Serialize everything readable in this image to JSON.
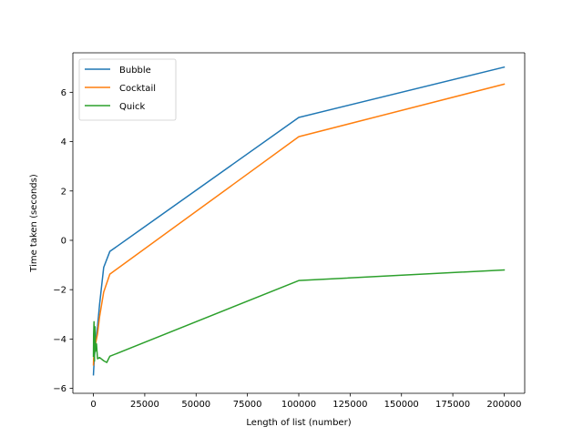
{
  "chart_data": {
    "type": "line",
    "title": "",
    "xlabel": "Length of list (number)",
    "ylabel": "Time taken (seconds)",
    "xlim": [
      -10000,
      210000
    ],
    "ylim": [
      -6.2,
      7.6
    ],
    "xticks": [
      0,
      25000,
      50000,
      75000,
      100000,
      125000,
      150000,
      175000,
      200000
    ],
    "yticks": [
      -6,
      -4,
      -2,
      0,
      2,
      4,
      6
    ],
    "grid": false,
    "legend_position": "upper-left",
    "series": [
      {
        "name": "Bubble",
        "color": "#1f77b4",
        "x": [
          10,
          100,
          500,
          1000,
          2000,
          3000,
          5000,
          8000,
          100000,
          200000
        ],
        "y": [
          -5.45,
          -5.3,
          -4.7,
          -4.2,
          -3.5,
          -2.6,
          -1.1,
          -0.45,
          4.98,
          7.02
        ]
      },
      {
        "name": "Cocktail",
        "color": "#ff7f0e",
        "x": [
          10,
          100,
          500,
          1000,
          2000,
          3000,
          5000,
          8000,
          100000,
          200000
        ],
        "y": [
          -5.05,
          -4.8,
          -4.5,
          -4.2,
          -3.8,
          -3.1,
          -2.1,
          -1.37,
          4.2,
          6.33
        ]
      },
      {
        "name": "Quick",
        "color": "#2ca02c",
        "x": [
          10,
          100,
          300,
          500,
          800,
          1000,
          1500,
          2000,
          3000,
          5000,
          6500,
          8000,
          100000,
          200000
        ],
        "y": [
          -4.7,
          -3.8,
          -3.3,
          -4.9,
          -3.5,
          -4.5,
          -4.2,
          -4.8,
          -4.75,
          -4.88,
          -4.95,
          -4.7,
          -1.63,
          -1.2
        ]
      }
    ]
  }
}
